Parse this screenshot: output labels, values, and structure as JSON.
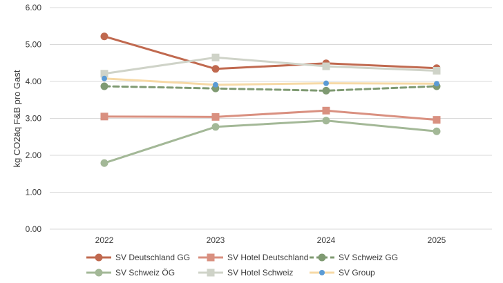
{
  "chart_data": {
    "type": "line",
    "ylabel": "kg CO2äq F&B pro Gast",
    "xlabel": "",
    "title": "",
    "categories": [
      "2022",
      "2023",
      "2024",
      "2025"
    ],
    "ylim": [
      0,
      6
    ],
    "yticks": [
      "0.00",
      "1.00",
      "2.00",
      "3.00",
      "4.00",
      "5.00",
      "6.00"
    ],
    "grid": true,
    "legend_position": "bottom",
    "series": [
      {
        "name": "SV Deutschland GG",
        "values": [
          5.22,
          4.34,
          4.49,
          4.36
        ],
        "color": "#c0694f",
        "marker": "circle",
        "dash": false,
        "width": 3
      },
      {
        "name": "SV Hotel Deutschland",
        "values": [
          3.05,
          3.04,
          3.21,
          2.96
        ],
        "color": "#d99080",
        "marker": "square",
        "dash": false,
        "width": 3
      },
      {
        "name": "SV Schweiz GG",
        "values": [
          3.87,
          3.81,
          3.75,
          3.87
        ],
        "color": "#7f9a72",
        "marker": "circle",
        "dash": true,
        "width": 3
      },
      {
        "name": "SV Schweiz ÖG",
        "values": [
          1.79,
          2.77,
          2.94,
          2.65
        ],
        "color": "#a3b897",
        "marker": "circle",
        "dash": false,
        "width": 3
      },
      {
        "name": "SV Hotel Schweiz",
        "values": [
          4.21,
          4.65,
          4.41,
          4.29
        ],
        "color": "#cfd3c8",
        "marker": "square",
        "dash": false,
        "width": 3
      },
      {
        "name": "SV Group",
        "values": [
          4.08,
          3.91,
          3.95,
          3.94
        ],
        "color": "#f6d9a6",
        "marker": "dot-blue",
        "dash": false,
        "width": 3
      }
    ]
  }
}
